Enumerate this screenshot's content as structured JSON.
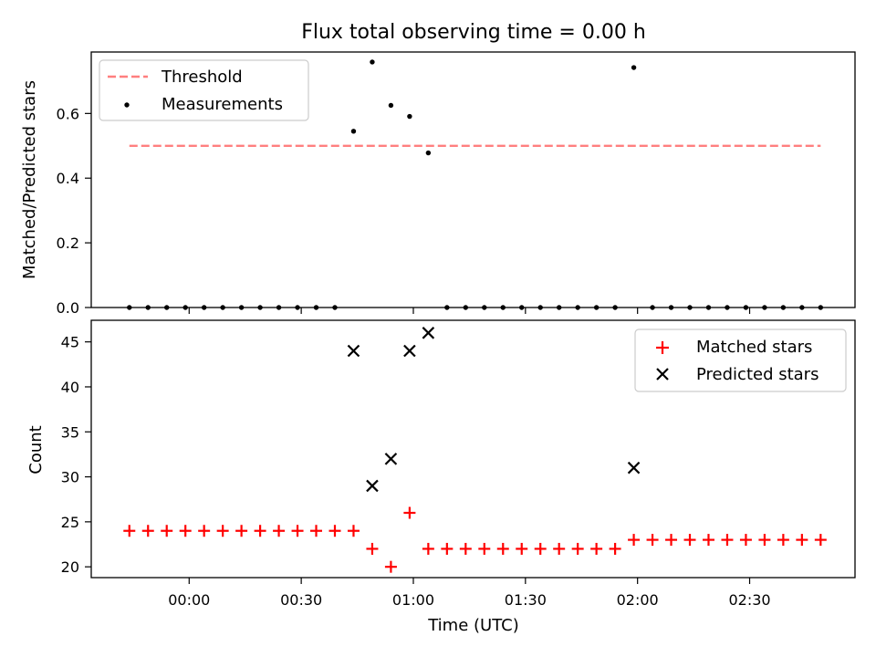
{
  "chart_data": [
    {
      "type": "scatter",
      "title": "Flux total observing time = 0.00 h",
      "xlabel": "",
      "ylabel": "Matched/Predicted stars",
      "ylim": [
        0,
        0.79
      ],
      "yticks": [
        "0.0",
        "0.2",
        "0.4",
        "0.6"
      ],
      "legend_position": "top-left",
      "threshold": {
        "name": "Threshold",
        "value": 0.5,
        "color": "#ff7f7f",
        "x_start": "23:44",
        "x_end": "02:49"
      },
      "series": [
        {
          "name": "Measurements",
          "color": "#000000",
          "points": [
            {
              "x": "23:44",
              "y": 0.0
            },
            {
              "x": "23:49",
              "y": 0.0
            },
            {
              "x": "23:54",
              "y": 0.0
            },
            {
              "x": "23:59",
              "y": 0.0
            },
            {
              "x": "00:04",
              "y": 0.0
            },
            {
              "x": "00:09",
              "y": 0.0
            },
            {
              "x": "00:14",
              "y": 0.0
            },
            {
              "x": "00:19",
              "y": 0.0
            },
            {
              "x": "00:24",
              "y": 0.0
            },
            {
              "x": "00:29",
              "y": 0.0
            },
            {
              "x": "00:34",
              "y": 0.0
            },
            {
              "x": "00:39",
              "y": 0.0
            },
            {
              "x": "00:44",
              "y": 0.545
            },
            {
              "x": "00:49",
              "y": 0.759
            },
            {
              "x": "00:54",
              "y": 0.625
            },
            {
              "x": "00:59",
              "y": 0.591
            },
            {
              "x": "01:04",
              "y": 0.478
            },
            {
              "x": "01:09",
              "y": 0.0
            },
            {
              "x": "01:14",
              "y": 0.0
            },
            {
              "x": "01:19",
              "y": 0.0
            },
            {
              "x": "01:24",
              "y": 0.0
            },
            {
              "x": "01:29",
              "y": 0.0
            },
            {
              "x": "01:34",
              "y": 0.0
            },
            {
              "x": "01:39",
              "y": 0.0
            },
            {
              "x": "01:44",
              "y": 0.0
            },
            {
              "x": "01:49",
              "y": 0.0
            },
            {
              "x": "01:54",
              "y": 0.0
            },
            {
              "x": "01:59",
              "y": 0.742
            },
            {
              "x": "02:04",
              "y": 0.0
            },
            {
              "x": "02:09",
              "y": 0.0
            },
            {
              "x": "02:14",
              "y": 0.0
            },
            {
              "x": "02:19",
              "y": 0.0
            },
            {
              "x": "02:24",
              "y": 0.0
            },
            {
              "x": "02:29",
              "y": 0.0
            },
            {
              "x": "02:34",
              "y": 0.0
            },
            {
              "x": "02:39",
              "y": 0.0
            },
            {
              "x": "02:44",
              "y": 0.0
            },
            {
              "x": "02:49",
              "y": 0.0
            }
          ]
        }
      ]
    },
    {
      "type": "scatter",
      "xlabel": "Time (UTC)",
      "ylabel": "Count",
      "ylim": [
        18.8,
        47.4
      ],
      "yticks": [
        "20",
        "25",
        "30",
        "35",
        "40",
        "45"
      ],
      "xticks": [
        "00:00",
        "00:30",
        "01:00",
        "01:30",
        "02:00",
        "02:30"
      ],
      "legend_position": "top-right",
      "series": [
        {
          "name": "Matched stars",
          "color": "#ff0000",
          "marker": "plus",
          "points": [
            {
              "x": "23:44",
              "y": 24
            },
            {
              "x": "23:49",
              "y": 24
            },
            {
              "x": "23:54",
              "y": 24
            },
            {
              "x": "23:59",
              "y": 24
            },
            {
              "x": "00:04",
              "y": 24
            },
            {
              "x": "00:09",
              "y": 24
            },
            {
              "x": "00:14",
              "y": 24
            },
            {
              "x": "00:19",
              "y": 24
            },
            {
              "x": "00:24",
              "y": 24
            },
            {
              "x": "00:29",
              "y": 24
            },
            {
              "x": "00:34",
              "y": 24
            },
            {
              "x": "00:39",
              "y": 24
            },
            {
              "x": "00:44",
              "y": 24
            },
            {
              "x": "00:49",
              "y": 22
            },
            {
              "x": "00:54",
              "y": 20
            },
            {
              "x": "00:59",
              "y": 26
            },
            {
              "x": "01:04",
              "y": 22
            },
            {
              "x": "01:09",
              "y": 22
            },
            {
              "x": "01:14",
              "y": 22
            },
            {
              "x": "01:19",
              "y": 22
            },
            {
              "x": "01:24",
              "y": 22
            },
            {
              "x": "01:29",
              "y": 22
            },
            {
              "x": "01:34",
              "y": 22
            },
            {
              "x": "01:39",
              "y": 22
            },
            {
              "x": "01:44",
              "y": 22
            },
            {
              "x": "01:49",
              "y": 22
            },
            {
              "x": "01:54",
              "y": 22
            },
            {
              "x": "01:59",
              "y": 23
            },
            {
              "x": "02:04",
              "y": 23
            },
            {
              "x": "02:09",
              "y": 23
            },
            {
              "x": "02:14",
              "y": 23
            },
            {
              "x": "02:19",
              "y": 23
            },
            {
              "x": "02:24",
              "y": 23
            },
            {
              "x": "02:29",
              "y": 23
            },
            {
              "x": "02:34",
              "y": 23
            },
            {
              "x": "02:39",
              "y": 23
            },
            {
              "x": "02:44",
              "y": 23
            },
            {
              "x": "02:49",
              "y": 23
            }
          ]
        },
        {
          "name": "Predicted stars",
          "color": "#000000",
          "marker": "x",
          "points": [
            {
              "x": "00:44",
              "y": 44
            },
            {
              "x": "00:49",
              "y": 29
            },
            {
              "x": "00:54",
              "y": 32
            },
            {
              "x": "00:59",
              "y": 44
            },
            {
              "x": "01:04",
              "y": 46
            },
            {
              "x": "01:59",
              "y": 31
            }
          ]
        }
      ]
    }
  ]
}
